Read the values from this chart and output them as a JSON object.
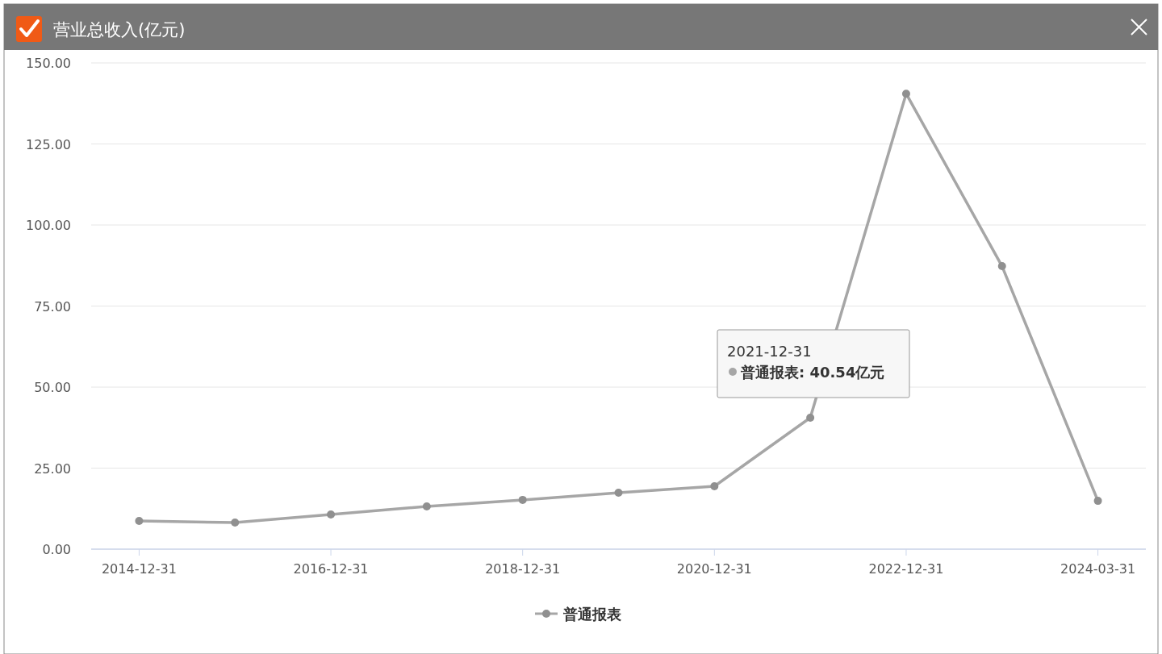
{
  "chart_data": {
    "type": "line",
    "title": "营业总收入(亿元)",
    "categories": [
      "2014-12-31",
      null,
      "2016-12-31",
      null,
      "2018-12-31",
      null,
      "2020-12-31",
      null,
      "2022-12-31",
      null,
      "2024-03-31"
    ],
    "series": [
      {
        "name": "普通报表",
        "color": "#a6a6a6",
        "values": [
          8.7,
          8.2,
          10.7,
          13.2,
          15.2,
          17.4,
          19.4,
          40.54,
          140.5,
          87.3,
          14.9
        ]
      }
    ],
    "ylim": [
      0,
      150
    ],
    "yticks": [
      {
        "value": 0,
        "label": "0.00"
      },
      {
        "value": 25,
        "label": "25.00"
      },
      {
        "value": 50,
        "label": "50.00"
      },
      {
        "value": 75,
        "label": "75.00"
      },
      {
        "value": 100,
        "label": "100.00"
      },
      {
        "value": 125,
        "label": "125.00"
      },
      {
        "value": 150,
        "label": "150.00"
      }
    ],
    "grid": "y",
    "legend": "bottom",
    "marker": "circle",
    "line_style": "solid",
    "annotations": [
      "2021-12-31",
      "普通报表: 40.54亿元"
    ]
  }
}
